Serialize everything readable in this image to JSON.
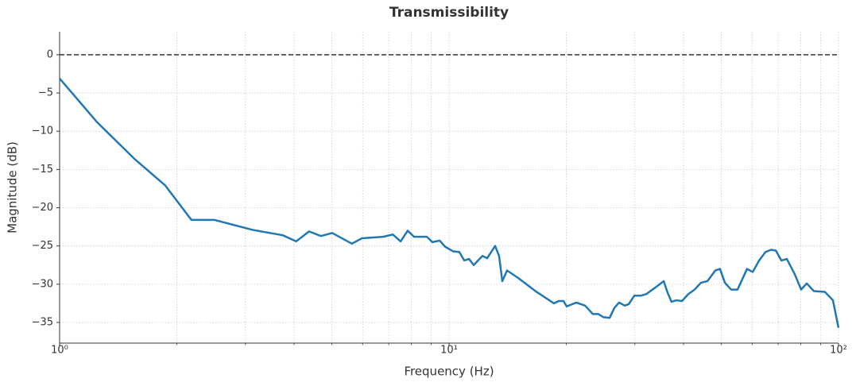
{
  "chart_data": {
    "type": "line",
    "title": "Transmissibility",
    "xlabel": "Frequency (Hz)",
    "ylabel": "Magnitude (dB)",
    "xscale": "log",
    "grid": true,
    "xlim": [
      1,
      100
    ],
    "ylim": [
      -37.7,
      3
    ],
    "xticks": [
      {
        "value": 1,
        "label": "10⁰"
      },
      {
        "value": 10,
        "label": "10¹"
      },
      {
        "value": 100,
        "label": "10²"
      }
    ],
    "xminor_ticks": [
      2,
      3,
      4,
      5,
      6,
      7,
      8,
      9,
      20,
      30,
      40,
      50,
      60,
      70,
      80,
      90
    ],
    "yticks": [
      {
        "value": 0,
        "label": "0"
      },
      {
        "value": -5,
        "label": "−5"
      },
      {
        "value": -10,
        "label": "−10"
      },
      {
        "value": -15,
        "label": "−15"
      },
      {
        "value": -20,
        "label": "−20"
      },
      {
        "value": -25,
        "label": "−25"
      },
      {
        "value": -30,
        "label": "−30"
      },
      {
        "value": -35,
        "label": "−35"
      }
    ],
    "hline": 0,
    "x": [
      1,
      1.247,
      1.563,
      1.868,
      2.18,
      2.5,
      3.13,
      3.74,
      4.05,
      4.37,
      4.69,
      5.01,
      5.63,
      5.97,
      6.77,
      7.17,
      7.51,
      7.83,
      8.13,
      8.77,
      9.06,
      9.46,
      9.77,
      10.24,
      10.63,
      10.94,
      11.25,
      11.57,
      12.18,
      12.53,
      13.13,
      13.44,
      13.7,
      14.09,
      15.06,
      16.77,
      18.59,
      19.13,
      19.67,
      20.05,
      21.22,
      22.35,
      23.4,
      24.19,
      24.88,
      25.84,
      26.57,
      27.33,
      28.26,
      28.93,
      29.9,
      31.05,
      32.07,
      33.93,
      35.57,
      36.4,
      37.26,
      38.34,
      39.63,
      41.13,
      42.71,
      44.37,
      46.06,
      48.27,
      49.62,
      51.07,
      52.99,
      55.05,
      58.23,
      60.21,
      62.53,
      64.91,
      67.09,
      69.04,
      71.34,
      73.68,
      77.2,
      80.17,
      82.87,
      86.42,
      92.25,
      96.75,
      100
    ],
    "series": [
      {
        "name": "Transmissibility",
        "color": "#1f77b4",
        "values": [
          -3.1,
          -8.8,
          -13.7,
          -17.1,
          -21.6,
          -21.6,
          -22.9,
          -23.6,
          -24.4,
          -23.1,
          -23.7,
          -23.3,
          -24.7,
          -24.0,
          -23.8,
          -23.5,
          -24.4,
          -23.0,
          -23.8,
          -23.8,
          -24.5,
          -24.3,
          -25.1,
          -25.7,
          -25.8,
          -26.9,
          -26.7,
          -27.5,
          -26.3,
          -26.6,
          -25.0,
          -26.3,
          -29.6,
          -28.2,
          -29.2,
          -31.0,
          -32.5,
          -32.2,
          -32.2,
          -32.9,
          -32.4,
          -32.8,
          -33.9,
          -33.9,
          -34.3,
          -34.4,
          -33.1,
          -32.4,
          -32.8,
          -32.6,
          -31.5,
          -31.5,
          -31.3,
          -30.4,
          -29.6,
          -31.1,
          -32.3,
          -32.1,
          -32.2,
          -31.3,
          -30.7,
          -29.8,
          -29.6,
          -28.2,
          -28.0,
          -29.8,
          -30.7,
          -30.7,
          -28.0,
          -28.4,
          -26.9,
          -25.8,
          -25.5,
          -25.6,
          -26.9,
          -26.7,
          -28.7,
          -30.7,
          -29.9,
          -30.9,
          -31.0,
          -32.1,
          -35.7
        ]
      }
    ]
  }
}
